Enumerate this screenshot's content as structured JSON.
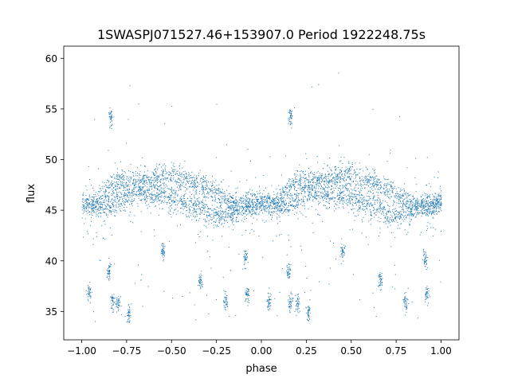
{
  "chart_data": {
    "type": "scatter",
    "title": "1SWASPJ071527.46+153907.0 Period 1922248.75s",
    "xlabel": "phase",
    "ylabel": "flux",
    "xlim": [
      -1.1,
      1.1
    ],
    "ylim": [
      32.2,
      61.2
    ],
    "xticks": [
      -1.0,
      -0.75,
      -0.5,
      -0.25,
      0.0,
      0.25,
      0.5,
      0.75,
      1.0
    ],
    "xtick_labels": [
      "−1.00",
      "−0.75",
      "−0.50",
      "−0.25",
      "0.00",
      "0.25",
      "0.50",
      "0.75",
      "1.00"
    ],
    "yticks": [
      35,
      40,
      45,
      50,
      55,
      60
    ],
    "ytick_labels": [
      "35",
      "40",
      "45",
      "50",
      "55",
      "60"
    ],
    "grid": false,
    "marker_color": "#1f77b4",
    "profile": {
      "phase": [
        0.0,
        0.05,
        0.1,
        0.15,
        0.2,
        0.25,
        0.3,
        0.35,
        0.4,
        0.45,
        0.5,
        0.55,
        0.6,
        0.65,
        0.7,
        0.75,
        0.8,
        0.85,
        0.9,
        0.95,
        1.0
      ],
      "upper": [
        45.8,
        45.5,
        46.0,
        47.4,
        47.9,
        47.8,
        48.0,
        47.9,
        48.2,
        48.4,
        48.6,
        48.1,
        47.9,
        47.6,
        47.3,
        46.8,
        46.0,
        45.6,
        45.6,
        45.6,
        45.8
      ],
      "lower": [
        45.8,
        45.5,
        45.4,
        45.5,
        46.2,
        46.5,
        46.9,
        46.7,
        46.5,
        46.6,
        46.2,
        45.9,
        45.4,
        45.3,
        44.8,
        44.5,
        44.6,
        45.0,
        45.3,
        45.5,
        45.8
      ]
    },
    "clusters": [
      {
        "x": -0.96,
        "y": 36.8
      },
      {
        "x": -0.83,
        "y": 35.8
      },
      {
        "x": -0.8,
        "y": 35.9
      },
      {
        "x": -0.85,
        "y": 39.0
      },
      {
        "x": -0.84,
        "y": 54.2
      },
      {
        "x": -0.34,
        "y": 38.0
      },
      {
        "x": -0.2,
        "y": 36.0
      },
      {
        "x": -0.09,
        "y": 40.3
      },
      {
        "x": -0.08,
        "y": 36.8
      },
      {
        "x": 0.04,
        "y": 36.0
      },
      {
        "x": 0.16,
        "y": 35.9
      },
      {
        "x": 0.2,
        "y": 35.8
      },
      {
        "x": 0.15,
        "y": 39.0
      },
      {
        "x": 0.16,
        "y": 54.2
      },
      {
        "x": 0.66,
        "y": 38.0
      },
      {
        "x": 0.8,
        "y": 36.0
      },
      {
        "x": 0.91,
        "y": 40.3
      },
      {
        "x": 0.92,
        "y": 36.8
      },
      {
        "x": -0.74,
        "y": 34.8
      },
      {
        "x": 0.26,
        "y": 34.8
      },
      {
        "x": 0.45,
        "y": 41.0
      },
      {
        "x": -0.55,
        "y": 41.0
      }
    ]
  }
}
